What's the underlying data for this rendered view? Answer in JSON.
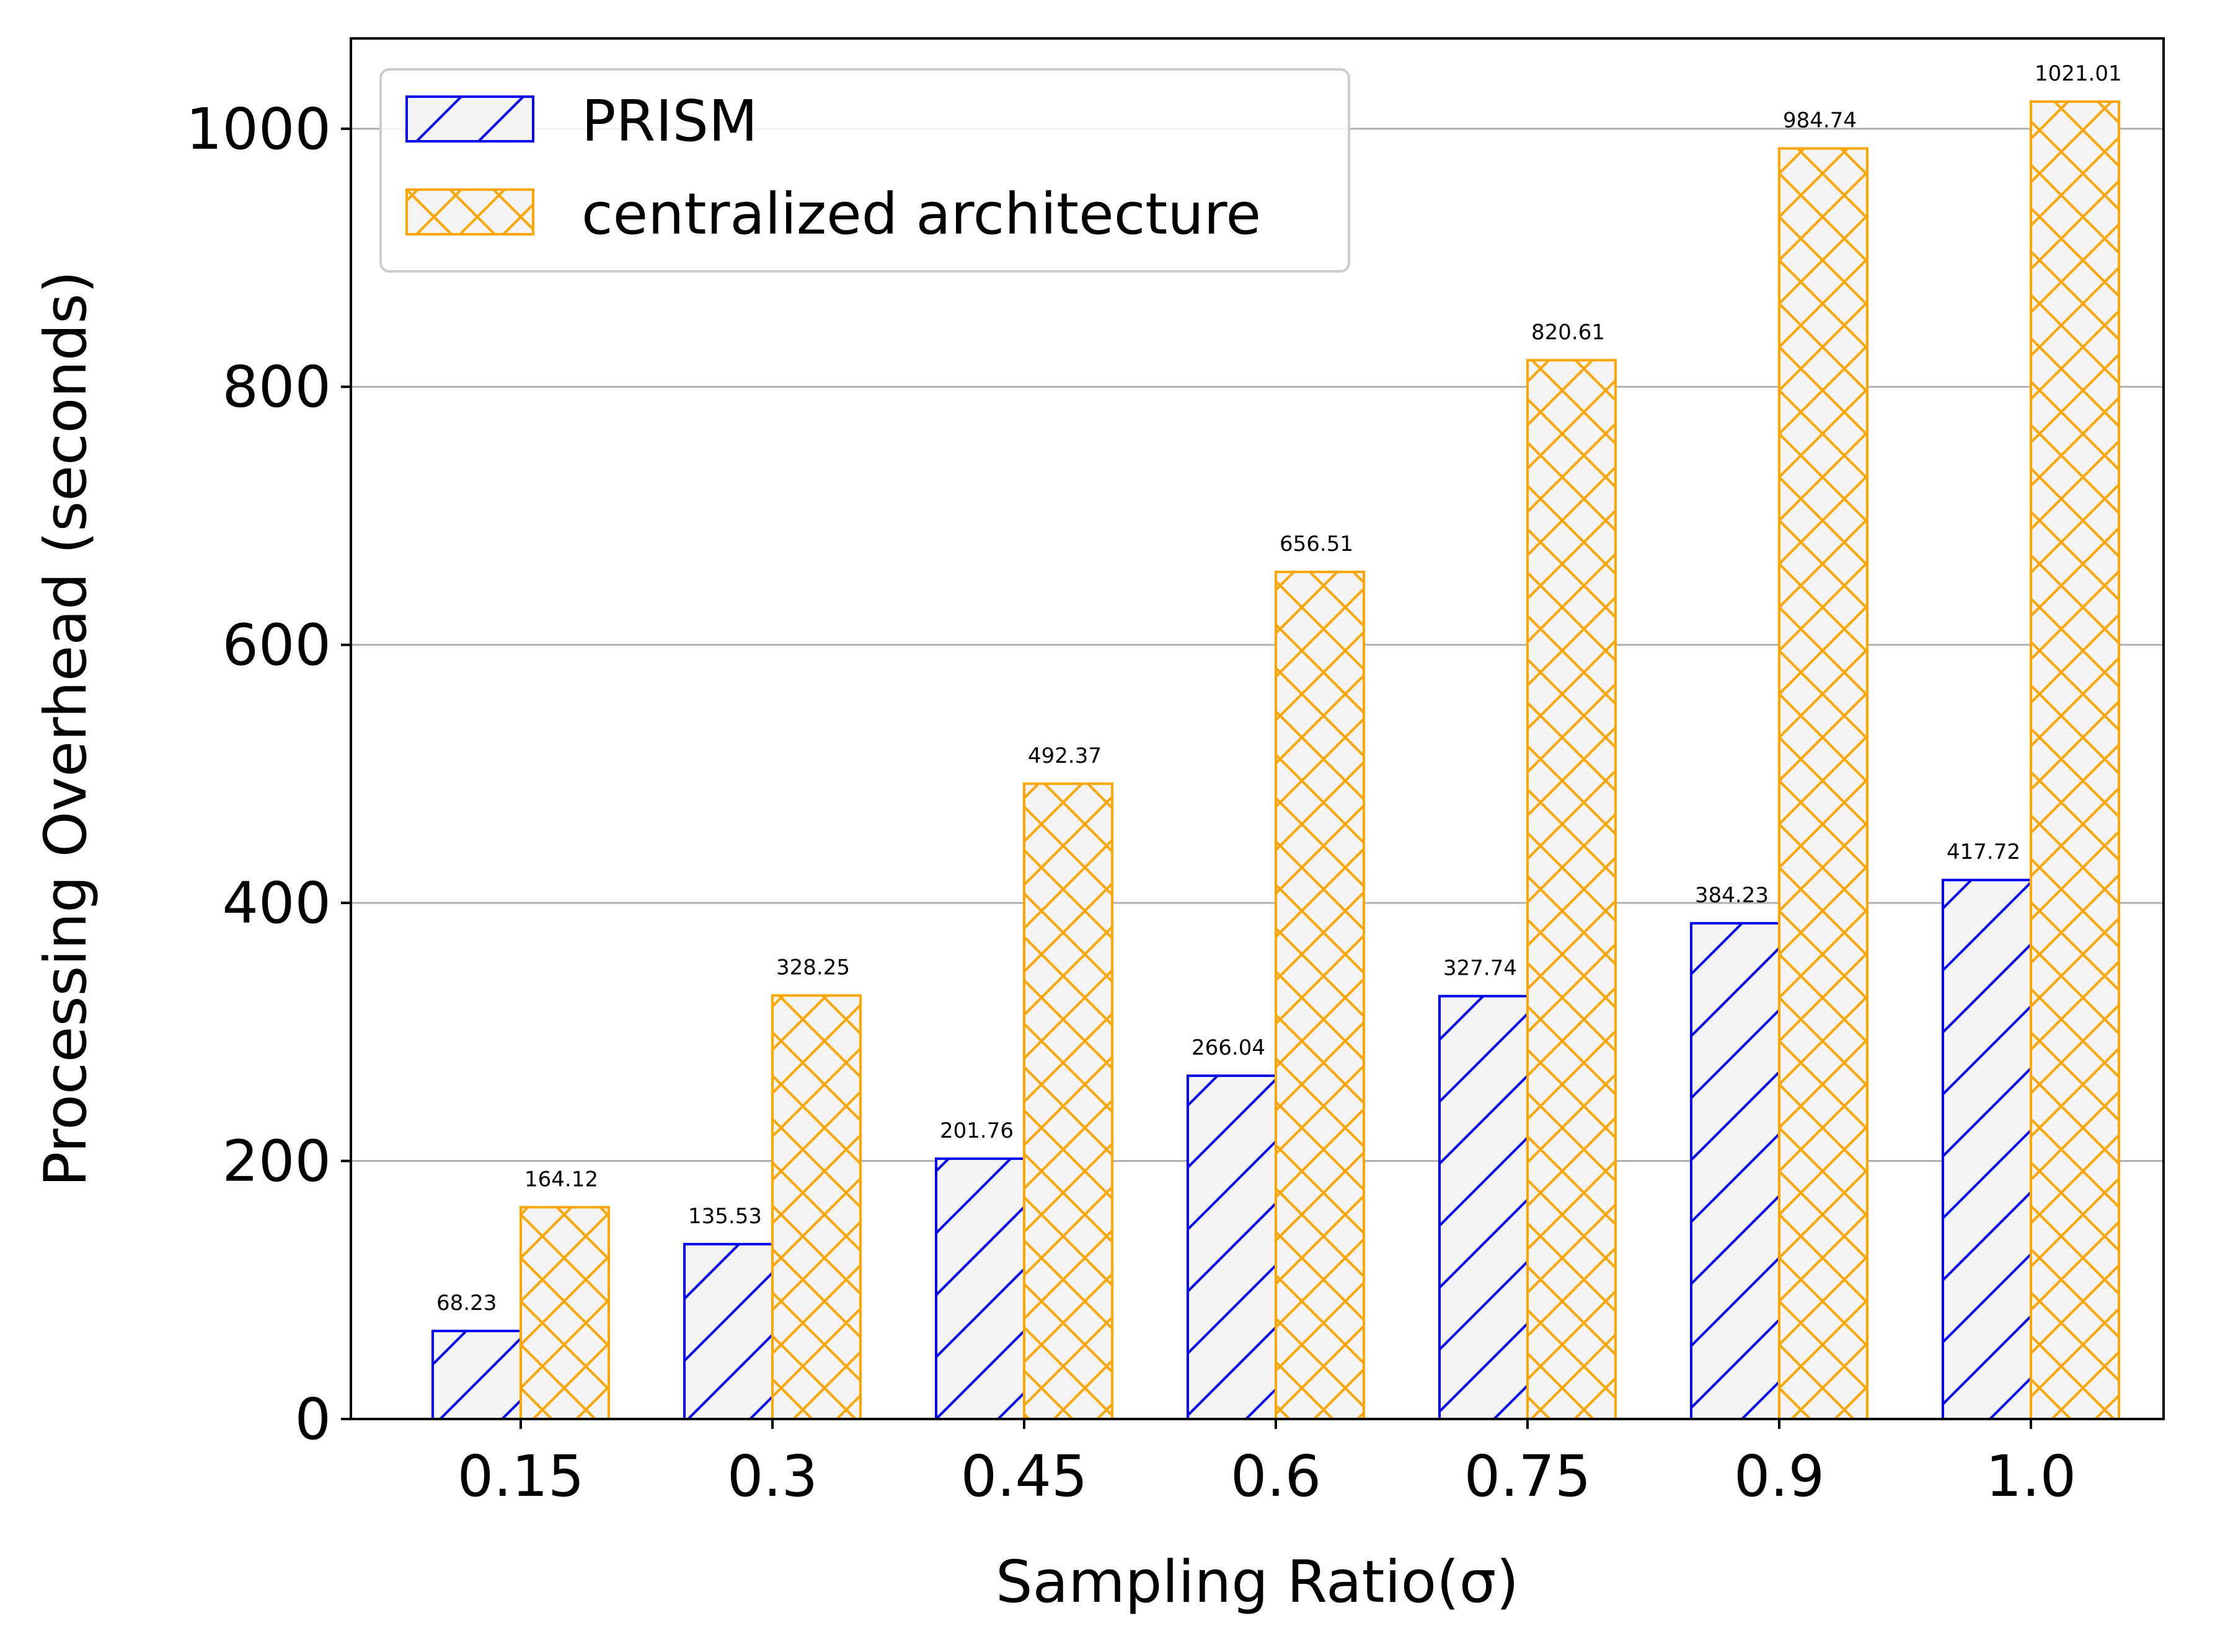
{
  "chart_data": {
    "type": "bar",
    "title": "",
    "xlabel": "Sampling Ratio(σ)",
    "ylabel": "Processing Overhead (seconds)",
    "ylim": [
      0,
      1070
    ],
    "yticks": [
      0,
      200,
      400,
      600,
      800,
      1000
    ],
    "grid": "y",
    "legend_position": "top-left",
    "categories": [
      "0.15",
      "0.3",
      "0.45",
      "0.6",
      "0.75",
      "0.9",
      "1.0"
    ],
    "series": [
      {
        "name": "PRISM",
        "color": "#0000ee",
        "hatch": "diagonal",
        "values": [
          68.23,
          135.53,
          201.76,
          266.04,
          327.74,
          384.23,
          417.72
        ],
        "labels": [
          "68.23",
          "135.53",
          "201.76",
          "266.04",
          "327.74",
          "384.23",
          "417.72"
        ]
      },
      {
        "name": "centralized architecture",
        "color": "#ffa500",
        "hatch": "crosshatch",
        "values": [
          164.12,
          328.25,
          492.37,
          656.51,
          820.61,
          984.74,
          1021.01
        ],
        "labels": [
          "164.12",
          "328.25",
          "492.37",
          "656.51",
          "820.61",
          "984.74",
          "1021.01"
        ]
      }
    ]
  }
}
